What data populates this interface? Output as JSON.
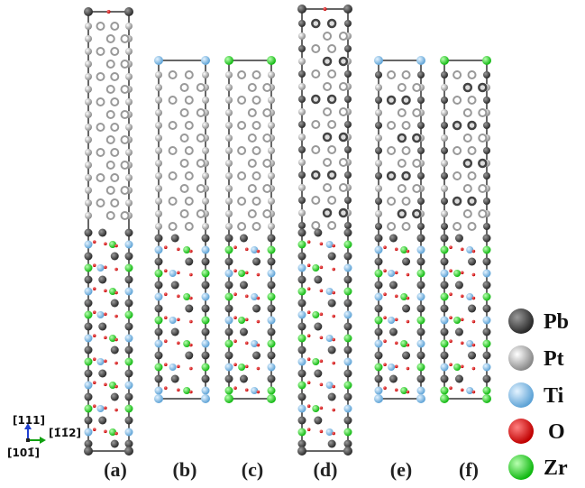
{
  "panels": [
    "(a)",
    "(b)",
    "(c)",
    "(d)",
    "(e)",
    "(f)"
  ],
  "legend": [
    "Pb",
    "Pt",
    "Ti",
    "O",
    "Zr"
  ],
  "axes": {
    "up": "[111]",
    "right": "[1̄1̄2]",
    "out": "[101̄]"
  }
}
